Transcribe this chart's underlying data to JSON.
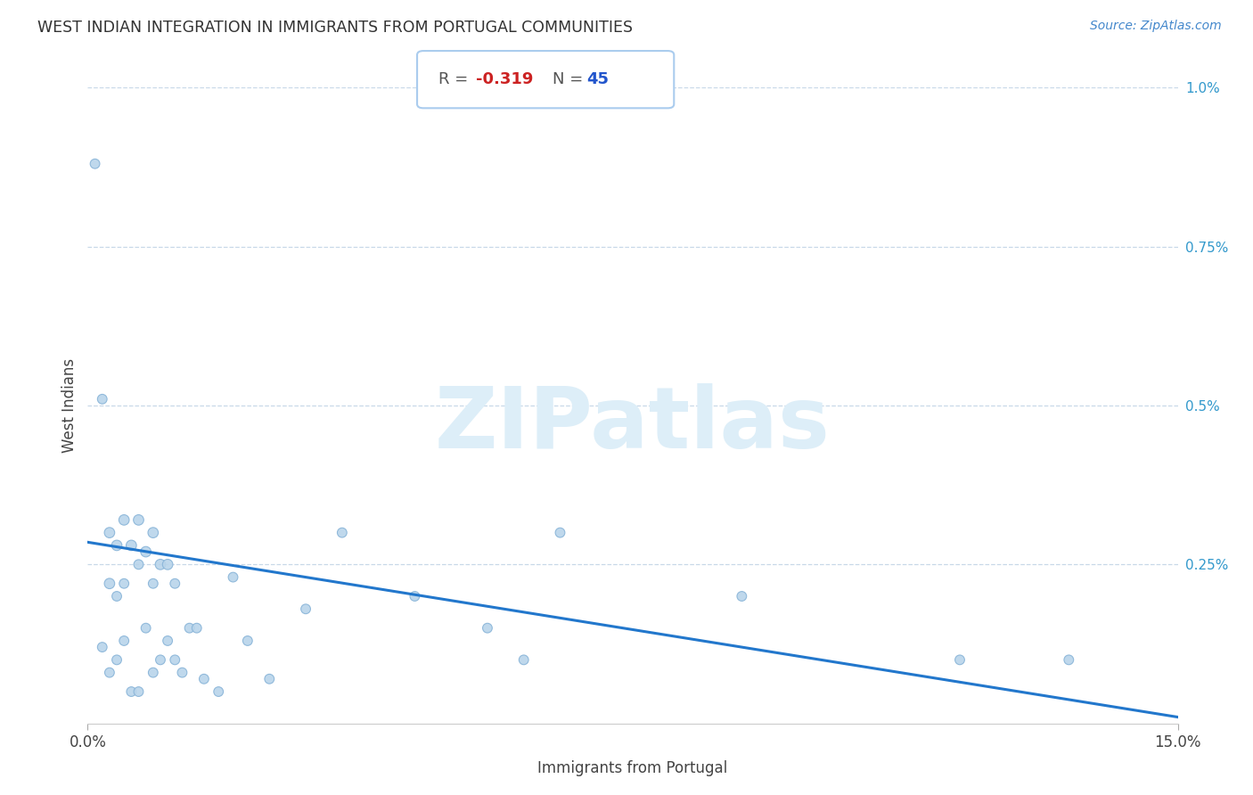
{
  "title": "WEST INDIAN INTEGRATION IN IMMIGRANTS FROM PORTUGAL COMMUNITIES",
  "source": "Source: ZipAtlas.com",
  "xlabel": "Immigrants from Portugal",
  "ylabel": "West Indians",
  "xlim": [
    0.0,
    0.15
  ],
  "ylim": [
    0.0,
    0.01
  ],
  "xtick_positions": [
    0.0,
    0.15
  ],
  "xtick_labels": [
    "0.0%",
    "15.0%"
  ],
  "ytick_values": [
    0.0025,
    0.005,
    0.0075,
    0.01
  ],
  "ytick_labels": [
    "0.25%",
    "0.5%",
    "0.75%",
    "1.0%"
  ],
  "background_color": "#ffffff",
  "scatter_color": "#b8d4ea",
  "scatter_edge_color": "#88b4d8",
  "line_color": "#2277cc",
  "grid_color": "#c8d8e8",
  "title_color": "#333333",
  "source_color": "#4488cc",
  "ylabel_color": "#444444",
  "xlabel_color": "#444444",
  "right_tick_color": "#3399cc",
  "R_text_color": "#555555",
  "R_val_color": "#cc2222",
  "N_text_color": "#555555",
  "N_val_color": "#2255cc",
  "watermark_color": "#ddeef8",
  "box_edge_color": "#aaccee",
  "regression_x0": 0.0,
  "regression_x1": 0.15,
  "regression_y0": 0.00285,
  "regression_y1": 0.0001,
  "scatter_x": [
    0.001,
    0.002,
    0.002,
    0.003,
    0.003,
    0.003,
    0.004,
    0.004,
    0.004,
    0.005,
    0.005,
    0.005,
    0.006,
    0.006,
    0.007,
    0.007,
    0.007,
    0.008,
    0.008,
    0.009,
    0.009,
    0.009,
    0.01,
    0.01,
    0.011,
    0.011,
    0.012,
    0.012,
    0.013,
    0.014,
    0.015,
    0.016,
    0.018,
    0.02,
    0.022,
    0.025,
    0.03,
    0.035,
    0.045,
    0.055,
    0.06,
    0.065,
    0.09,
    0.12,
    0.135
  ],
  "scatter_y": [
    0.0088,
    0.0051,
    0.0012,
    0.003,
    0.0022,
    0.0008,
    0.0028,
    0.002,
    0.001,
    0.0032,
    0.0022,
    0.0013,
    0.0028,
    0.0005,
    0.0032,
    0.0025,
    0.0005,
    0.0027,
    0.0015,
    0.003,
    0.0022,
    0.0008,
    0.0025,
    0.001,
    0.0025,
    0.0013,
    0.0022,
    0.001,
    0.0008,
    0.0015,
    0.0015,
    0.0007,
    0.0005,
    0.0023,
    0.0013,
    0.0007,
    0.0018,
    0.003,
    0.002,
    0.0015,
    0.001,
    0.003,
    0.002,
    0.001,
    0.001
  ],
  "scatter_sizes": [
    60,
    60,
    60,
    70,
    70,
    60,
    70,
    60,
    60,
    70,
    60,
    60,
    70,
    60,
    70,
    60,
    60,
    70,
    60,
    70,
    60,
    60,
    70,
    60,
    70,
    60,
    60,
    60,
    60,
    60,
    60,
    60,
    60,
    60,
    60,
    60,
    60,
    60,
    60,
    60,
    60,
    60,
    60,
    60,
    60
  ]
}
